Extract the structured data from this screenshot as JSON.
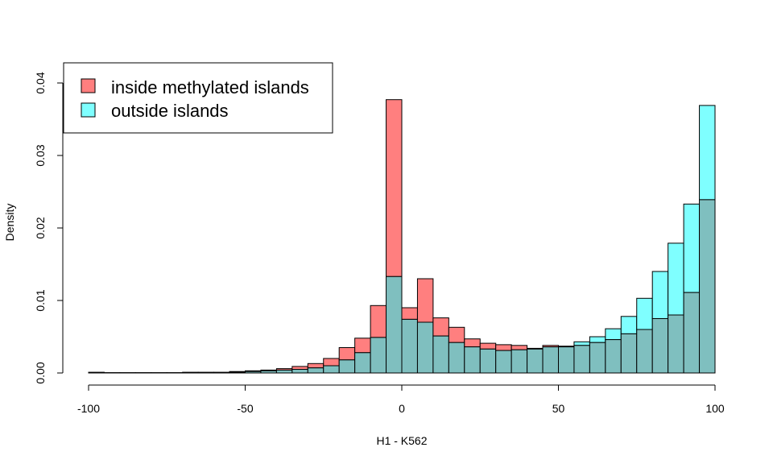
{
  "chart_data": {
    "type": "histogram",
    "xlabel": "H1 - K562",
    "ylabel": "Density",
    "xlim": [
      -100,
      100
    ],
    "ylim": [
      0,
      0.045
    ],
    "x_ticks": [
      -100,
      -50,
      0,
      50,
      100
    ],
    "x_tick_labels": [
      "-100",
      "-50",
      "0",
      "50",
      "100"
    ],
    "y_ticks": [
      0,
      0.01,
      0.02,
      0.03,
      0.04
    ],
    "y_tick_labels": [
      "0.00",
      "0.01",
      "0.02",
      "0.03",
      "0.04"
    ],
    "bin_edges": [
      -100,
      -95,
      -90,
      -85,
      -80,
      -75,
      -70,
      -65,
      -60,
      -55,
      -50,
      -45,
      -40,
      -35,
      -30,
      -25,
      -20,
      -15,
      -10,
      -5,
      0,
      5,
      10,
      15,
      20,
      25,
      30,
      35,
      40,
      45,
      50,
      55,
      60,
      65,
      70,
      75,
      80,
      85,
      90,
      95,
      100
    ],
    "series": [
      {
        "name": "inside methylated islands",
        "color": "#FF7F7F",
        "values": [
          0.0001,
          5e-05,
          5e-05,
          5e-05,
          5e-05,
          5e-05,
          0.0001,
          0.0001,
          0.0001,
          0.0002,
          0.0003,
          0.0004,
          0.0006,
          0.0009,
          0.0013,
          0.002,
          0.0035,
          0.0048,
          0.0093,
          0.0377,
          0.009,
          0.013,
          0.0076,
          0.0063,
          0.0047,
          0.0041,
          0.0039,
          0.0038,
          0.0033,
          0.0038,
          0.0036,
          0.0038,
          0.0042,
          0.0046,
          0.0054,
          0.006,
          0.0075,
          0.008,
          0.0111,
          0.0239
        ]
      },
      {
        "name": "outside islands",
        "color": "#7FFFFF",
        "values": [
          0.0001,
          5e-05,
          5e-05,
          5e-05,
          5e-05,
          5e-05,
          5e-05,
          0.0001,
          0.0001,
          0.0001,
          0.0002,
          0.0003,
          0.0004,
          0.0005,
          0.0007,
          0.001,
          0.0018,
          0.0028,
          0.0049,
          0.0133,
          0.0074,
          0.007,
          0.0051,
          0.0042,
          0.0036,
          0.0033,
          0.0031,
          0.0032,
          0.0034,
          0.0036,
          0.0037,
          0.0043,
          0.005,
          0.0061,
          0.0078,
          0.0103,
          0.014,
          0.0179,
          0.0233,
          0.0369
        ]
      }
    ],
    "overlap_color": "#7FBFBF",
    "legend_position": "top-left",
    "grid": false
  }
}
